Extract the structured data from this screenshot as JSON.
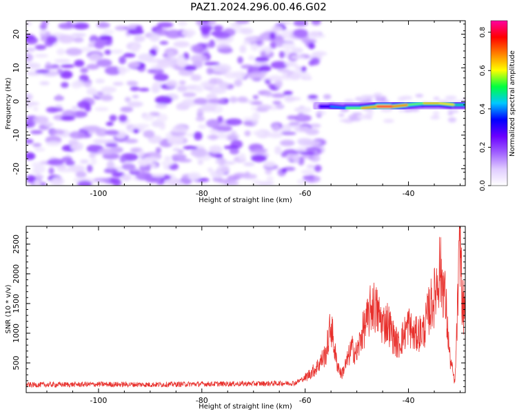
{
  "title": "PAZ1.2024.296.00.46.G02",
  "chart_data": [
    {
      "type": "heatmap",
      "xlabel": "Height of straight line (km)",
      "ylabel": "Frequency (Hz)",
      "xlim": [
        -114,
        -29
      ],
      "ylim": [
        -25,
        24
      ],
      "xticks": [
        -100,
        -80,
        -60,
        -40
      ],
      "yticks": [
        -20,
        -10,
        0,
        10,
        20
      ],
      "colorbar": {
        "label": "Normalized spectral amplitude",
        "range": [
          0,
          0.86
        ],
        "ticks": [
          0.0,
          0.2,
          0.4,
          0.6,
          0.8
        ],
        "colors": [
          "#ffffff",
          "#e0ccff",
          "#a060ff",
          "#6a00ff",
          "#0000ff",
          "#00c8ff",
          "#00ff40",
          "#ffff00",
          "#ff8000",
          "#ff0000",
          "#ff00a0"
        ]
      },
      "signal_track": [
        {
          "x": -57,
          "y": -1.5,
          "v": 0.35
        },
        {
          "x": -55,
          "y": -1.5,
          "v": 0.3
        },
        {
          "x": -52,
          "y": -2.0,
          "v": 0.5
        },
        {
          "x": -49,
          "y": -2.0,
          "v": 0.6
        },
        {
          "x": -46,
          "y": -1.5,
          "v": 0.75
        },
        {
          "x": -43,
          "y": -1.5,
          "v": 0.86
        },
        {
          "x": -40,
          "y": -1.0,
          "v": 0.55
        },
        {
          "x": -37,
          "y": -0.5,
          "v": 0.55
        },
        {
          "x": -34,
          "y": -0.5,
          "v": 0.75
        },
        {
          "x": -31,
          "y": -1.0,
          "v": 0.5
        },
        {
          "x": -29,
          "y": -1.0,
          "v": 0.45
        }
      ]
    },
    {
      "type": "line",
      "xlabel": "Height of straight line (km)",
      "ylabel": "SNR (10 * v/v)",
      "xlim": [
        -114,
        -29
      ],
      "ylim": [
        0,
        2800
      ],
      "xticks": [
        -100,
        -80,
        -60,
        -40
      ],
      "yticks": [
        500,
        1000,
        1500,
        2000,
        2500
      ],
      "color": "#e8302c",
      "series": [
        {
          "x": [
            -114,
            -100,
            -90,
            -80,
            -70,
            -62,
            -60,
            -58,
            -56,
            -55,
            -54,
            -53,
            -52,
            -51,
            -50,
            -49,
            -48,
            -47,
            -46,
            -45,
            -44,
            -43,
            -42,
            -41,
            -40,
            -39,
            -38,
            -37,
            -36,
            -35,
            -34,
            -33,
            -32,
            -31,
            -30,
            -29.5,
            -29
          ],
          "y": [
            130,
            140,
            135,
            145,
            150,
            160,
            250,
            400,
            650,
            1150,
            550,
            300,
            500,
            750,
            650,
            1000,
            1200,
            1500,
            1350,
            1150,
            1200,
            950,
            800,
            950,
            1150,
            950,
            1000,
            1050,
            1400,
            1600,
            2100,
            1700,
            600,
            150,
            2650,
            1300,
            1600
          ]
        }
      ]
    }
  ]
}
